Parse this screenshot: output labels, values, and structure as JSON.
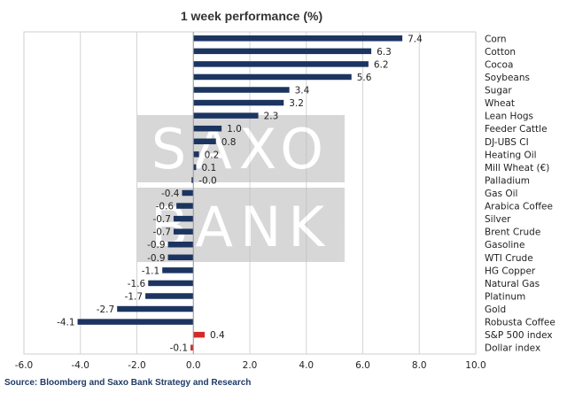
{
  "chart_data": {
    "type": "bar",
    "orientation": "horizontal",
    "title": "1 week performance (%)",
    "categories": [
      "Corn",
      "Cotton",
      "Cocoa",
      "Soybeans",
      "Sugar",
      "Wheat",
      "Lean Hogs",
      "Feeder Cattle",
      "DJ-UBS CI",
      "Heating Oil",
      "Mill Wheat (€)",
      "Palladium",
      "Gas Oil",
      "Arabica Coffee",
      "Silver",
      "Brent Crude",
      "Gasoline",
      "WTI Crude",
      "HG Copper",
      "Natural Gas",
      "Platinum",
      "Gold",
      "Robusta Coffee",
      "S&P 500 index",
      "Dollar index"
    ],
    "values": [
      7.4,
      6.3,
      6.2,
      5.6,
      3.4,
      3.2,
      2.3,
      1.0,
      0.8,
      0.2,
      0.1,
      -0.0,
      -0.4,
      -0.6,
      -0.7,
      -0.7,
      -0.9,
      -0.9,
      -1.1,
      -1.6,
      -1.7,
      -2.7,
      -4.1,
      0.4,
      -0.1
    ],
    "value_labels": [
      "7.4",
      "6.3",
      "6.2",
      "5.6",
      "3.4",
      "3.2",
      "2.3",
      "1.0",
      "0.8",
      "0.2",
      "0.1",
      "-0.0",
      "-0.4",
      "-0.6",
      "-0.7",
      "-0.7",
      "-0.9",
      "-0.9",
      "-1.1",
      "-1.6",
      "-1.7",
      "-2.7",
      "-4.1",
      "0.4",
      "-0.1"
    ],
    "bar_colors": [
      "#1c3560",
      "#1c3560",
      "#1c3560",
      "#1c3560",
      "#1c3560",
      "#1c3560",
      "#1c3560",
      "#1c3560",
      "#1c3560",
      "#1c3560",
      "#1c3560",
      "#1c3560",
      "#1c3560",
      "#1c3560",
      "#1c3560",
      "#1c3560",
      "#1c3560",
      "#1c3560",
      "#1c3560",
      "#1c3560",
      "#1c3560",
      "#1c3560",
      "#1c3560",
      "#d42a2a",
      "#d42a2a"
    ],
    "xlim": [
      -6.0,
      10.0
    ],
    "xticks": [
      -6.0,
      -4.0,
      -2.0,
      0.0,
      2.0,
      4.0,
      6.0,
      8.0,
      10.0
    ],
    "xtick_labels": [
      "-6.0",
      "-4.0",
      "-2.0",
      "0.0",
      "2.0",
      "4.0",
      "6.0",
      "8.0",
      "10.0"
    ],
    "grid": "vertical",
    "xlabel": "",
    "ylabel": "",
    "watermark": [
      "SAXO",
      "BANK"
    ]
  },
  "source": "Source: Bloomberg and Saxo Bank Strategy and Research"
}
